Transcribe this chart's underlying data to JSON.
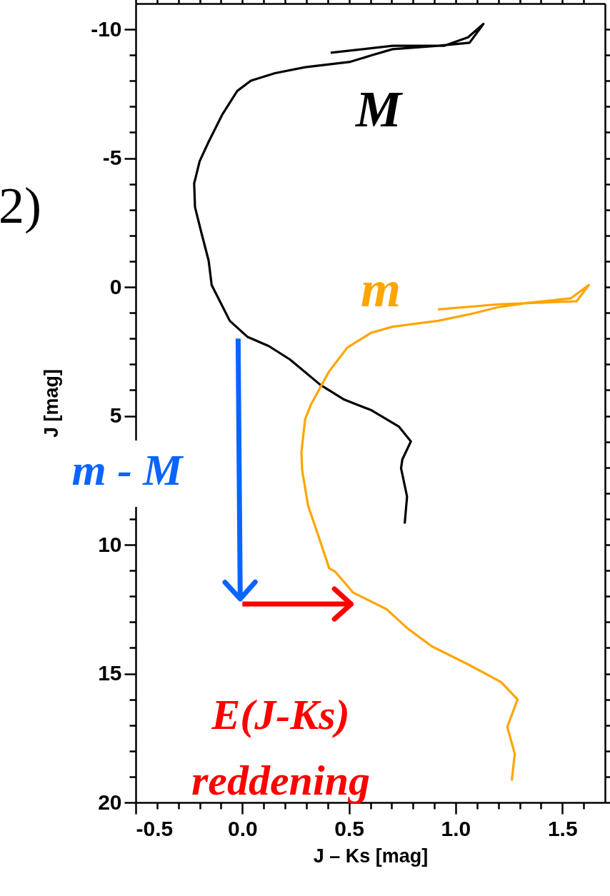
{
  "chart_data": {
    "type": "line",
    "xlabel": "J – Ks [mag]",
    "ylabel": "J [mag]",
    "xlim": [
      -0.5,
      1.7
    ],
    "ylim": [
      20,
      -11
    ],
    "xticks": [
      -0.5,
      {
        "value": -0.4,
        "label": null
      },
      {
        "value": -0.3,
        "label": null
      },
      {
        "value": -0.2,
        "label": null
      },
      {
        "value": -0.1,
        "label": null
      },
      {
        "value": 0,
        "label": "0.0"
      },
      {
        "value": 0.1,
        "label": null
      },
      {
        "value": 0.2,
        "label": null
      },
      {
        "value": 0.3,
        "label": null
      },
      {
        "value": 0.4,
        "label": null
      },
      0.5,
      {
        "value": 0.6,
        "label": null
      },
      {
        "value": 0.7,
        "label": null
      },
      {
        "value": 0.8,
        "label": null
      },
      {
        "value": 0.9,
        "label": null
      },
      {
        "value": 1,
        "label": "1.0"
      },
      {
        "value": 1.1,
        "label": null
      },
      {
        "value": 1.2,
        "label": null
      },
      {
        "value": 1.3,
        "label": null
      },
      {
        "value": 1.4,
        "label": null
      },
      1.5,
      {
        "value": 1.6,
        "label": null
      }
    ],
    "yticks": [
      -10,
      {
        "value": -9,
        "label": null
      },
      {
        "value": -8,
        "label": null
      },
      {
        "value": -7,
        "label": null
      },
      {
        "value": -6,
        "label": null
      },
      -5,
      {
        "value": -4,
        "label": null
      },
      {
        "value": -3,
        "label": null
      },
      {
        "value": -2,
        "label": null
      },
      {
        "value": -1,
        "label": null
      },
      0,
      {
        "value": 1,
        "label": null
      },
      {
        "value": 2,
        "label": null
      },
      {
        "value": 3,
        "label": null
      },
      {
        "value": 4,
        "label": null
      },
      5,
      {
        "value": 6,
        "label": null
      },
      {
        "value": 7,
        "label": null
      },
      {
        "value": 8,
        "label": null
      },
      {
        "value": 9,
        "label": null
      },
      10,
      {
        "value": 11,
        "label": null
      },
      {
        "value": 12,
        "label": null
      },
      {
        "value": 13,
        "label": null
      },
      {
        "value": 14,
        "label": null
      },
      15,
      {
        "value": 16,
        "label": null
      },
      {
        "value": 17,
        "label": null
      },
      {
        "value": 18,
        "label": null
      },
      {
        "value": 19,
        "label": null
      },
      20
    ],
    "grid": false,
    "line_style": "solid",
    "series": [
      {
        "color": "#000000",
        "x": [
          0.761,
          0.772,
          0.744,
          0.75,
          0.79,
          0.733,
          0.605,
          0.478,
          0.365,
          0.223,
          0.124,
          0.025,
          -0.059,
          -0.116,
          -0.144,
          -0.158,
          -0.194,
          -0.222,
          -0.226,
          -0.2,
          -0.158,
          -0.095,
          -0.024,
          0.04,
          0.153,
          0.294,
          0.506,
          0.605,
          0.704,
          0.917,
          1.065,
          1.13,
          1.058,
          0.945,
          0.704,
          0.414
        ],
        "values": [
          9.18,
          8.13,
          7.03,
          6.69,
          5.99,
          5.41,
          4.78,
          4.37,
          3.79,
          2.81,
          2.29,
          1.94,
          1.31,
          0.38,
          -0.08,
          -1.02,
          -2.17,
          -3.1,
          -4.02,
          -4.89,
          -5.64,
          -6.68,
          -7.61,
          -8.01,
          -8.3,
          -8.53,
          -8.74,
          -8.99,
          -9.23,
          -9.36,
          -9.48,
          -10.21,
          -9.69,
          -9.36,
          -9.36,
          -9.09
        ]
      },
      {
        "color": "#ffa500",
        "x": [
          1.263,
          1.277,
          1.242,
          1.29,
          1.213,
          1.058,
          0.888,
          0.775,
          0.676,
          0.52,
          0.436,
          0.407,
          0.351,
          0.308,
          0.28,
          0.277,
          0.294,
          0.322,
          0.407,
          0.492,
          0.605,
          0.704,
          0.917,
          1.058,
          1.2,
          1.34,
          1.539,
          1.624,
          1.567,
          1.2,
          0.917
        ],
        "values": [
          19.15,
          18.11,
          17.07,
          16.0,
          15.33,
          14.64,
          13.94,
          13.25,
          12.5,
          11.86,
          11.05,
          10.91,
          9.52,
          8.48,
          7.09,
          6.4,
          5.13,
          4.55,
          3.27,
          2.35,
          1.77,
          1.54,
          1.31,
          1.07,
          0.78,
          0.61,
          0.44,
          -0.08,
          0.55,
          0.67,
          0.87
        ]
      },
      {
        "color": "#0a64ff",
        "x": [
          -0.02,
          -0.01
        ],
        "values": [
          2.0,
          12.1
        ]
      },
      {
        "color": "#ff0000",
        "x": [
          0.0,
          0.51
        ],
        "values": [
          12.3,
          12.3
        ]
      }
    ],
    "annotations": [
      "2)",
      "M",
      "m",
      "m - M",
      "E(J-Ks)\nreddening"
    ]
  }
}
